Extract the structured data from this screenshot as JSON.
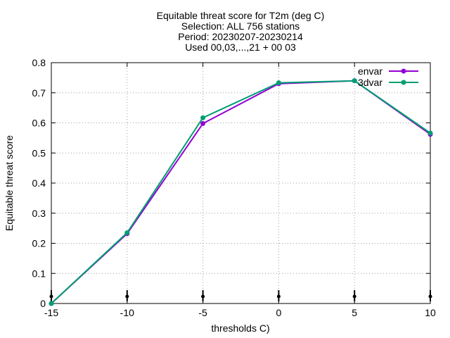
{
  "chart_data": {
    "type": "line",
    "title_lines": [
      "Equitable threat score  for T2m (deg C)",
      "Selection: ALL    756 stations",
      "Period: 20230207-20230214",
      "Used 00,03,...,21 + 00 03"
    ],
    "xlabel": "thresholds C)",
    "ylabel": "Equitable threat score",
    "x": [
      -15,
      -10,
      -5,
      0,
      5,
      10
    ],
    "xlim": [
      -15,
      10
    ],
    "ylim": [
      0,
      0.8
    ],
    "xticks": [
      "-15",
      "-10",
      "-5",
      "0",
      "5",
      "10"
    ],
    "yticks": [
      "0",
      "0.1",
      "0.2",
      "0.3",
      "0.4",
      "0.5",
      "0.6",
      "0.7",
      "0.8"
    ],
    "grid": true,
    "legend_position": "top-right",
    "series": [
      {
        "name": "envar",
        "color": "#9400d3",
        "values": [
          0.0,
          0.232,
          0.598,
          0.73,
          0.74,
          0.562
        ]
      },
      {
        "name": "3dvar",
        "color": "#009e73",
        "values": [
          0.0,
          0.235,
          0.617,
          0.733,
          0.74,
          0.566
        ]
      }
    ]
  }
}
